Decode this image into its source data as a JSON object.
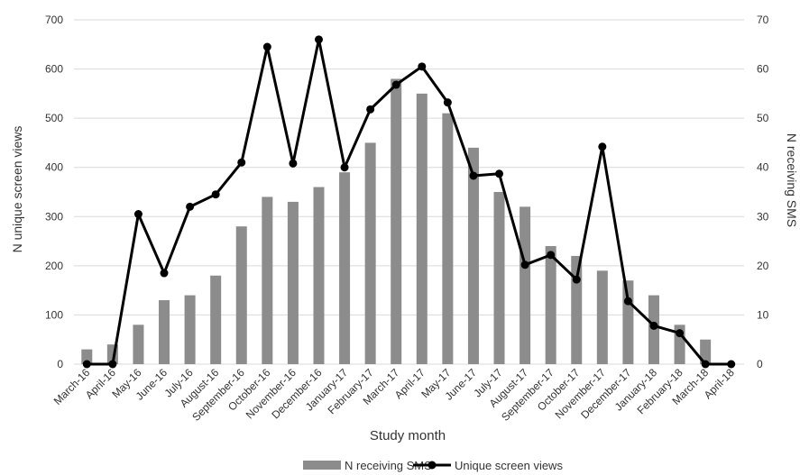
{
  "chart_data": {
    "type": "bar",
    "categories": [
      "March-16",
      "April-16",
      "May-16",
      "June-16",
      "July-16",
      "August-16",
      "September-16",
      "October-16",
      "November-16",
      "December-16",
      "January-17",
      "February-17",
      "March-17",
      "April-17",
      "May-17",
      "June-17",
      "July-17",
      "August-17",
      "September-17",
      "October-17",
      "November-17",
      "December-17",
      "January-18",
      "February-18",
      "March-18",
      "April-18"
    ],
    "series": [
      {
        "name": "N receiving SMS",
        "type": "bar",
        "axis": "right",
        "color": "#8c8c8c",
        "values": [
          3,
          4,
          8,
          13,
          14,
          18,
          28,
          34,
          33,
          36,
          39,
          45,
          58,
          55,
          51,
          44,
          35,
          32,
          24,
          22,
          19,
          17,
          14,
          8,
          5,
          0
        ]
      },
      {
        "name": "Unique screen views",
        "type": "line",
        "axis": "left",
        "color": "#000000",
        "values": [
          0,
          0,
          305,
          185,
          320,
          345,
          410,
          645,
          408,
          660,
          400,
          518,
          568,
          605,
          532,
          383,
          387,
          202,
          222,
          172,
          442,
          128,
          78,
          63,
          0,
          0
        ]
      }
    ],
    "xlabel": "Study month",
    "ylabel_left": "N unique screen views",
    "ylabel_right": "N receiving SMS",
    "ylim_left": [
      0,
      700
    ],
    "ylim_right": [
      0,
      70
    ],
    "yticks_left": [
      "0",
      "100",
      "200",
      "300",
      "400",
      "500",
      "600",
      "700"
    ],
    "yticks_right": [
      "0",
      "10",
      "20",
      "30",
      "40",
      "50",
      "60",
      "70"
    ],
    "grid": true,
    "legend_position": "bottom"
  }
}
